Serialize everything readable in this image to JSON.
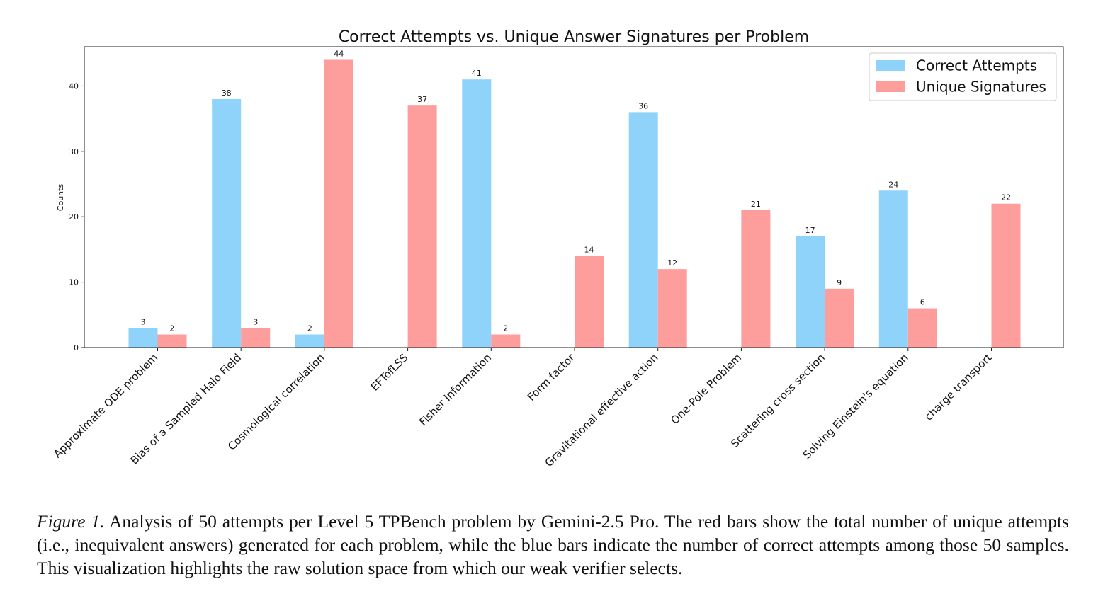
{
  "chart_data": {
    "type": "bar",
    "title": "Correct Attempts vs. Unique Answer Signatures per Problem",
    "xlabel": "",
    "ylabel": "Counts",
    "ylim": [
      0,
      46
    ],
    "yticks": [
      0,
      10,
      20,
      30,
      40
    ],
    "grid": false,
    "legend_position": "top-right",
    "categories": [
      "Approximate ODE problem",
      "Bias of a Sampled Halo Field",
      "Cosmological correlation",
      "EFTofLSS",
      "Fisher Information",
      "Form factor",
      "Gravitational effective action",
      "One-Pole Problem",
      "Scattering cross section",
      "Solving Einstein's equation",
      "charge transport"
    ],
    "series": [
      {
        "name": "Correct Attempts",
        "color": "#8fd3fb",
        "values": [
          3,
          38,
          2,
          0,
          41,
          0,
          36,
          0,
          17,
          24,
          0
        ]
      },
      {
        "name": "Unique Signatures",
        "color": "#fd9d9c",
        "values": [
          2,
          3,
          44,
          37,
          2,
          14,
          12,
          21,
          9,
          6,
          22
        ]
      }
    ]
  },
  "caption": {
    "label": "Figure 1.",
    "text": "Analysis of 50 attempts per Level 5 TPBench problem by Gemini-2.5 Pro. The red bars show the total number of unique attempts (i.e., inequivalent answers) generated for each problem, while the blue bars indicate the number of correct attempts among those 50 samples. This visualization highlights the raw solution space from which our weak verifier selects."
  }
}
